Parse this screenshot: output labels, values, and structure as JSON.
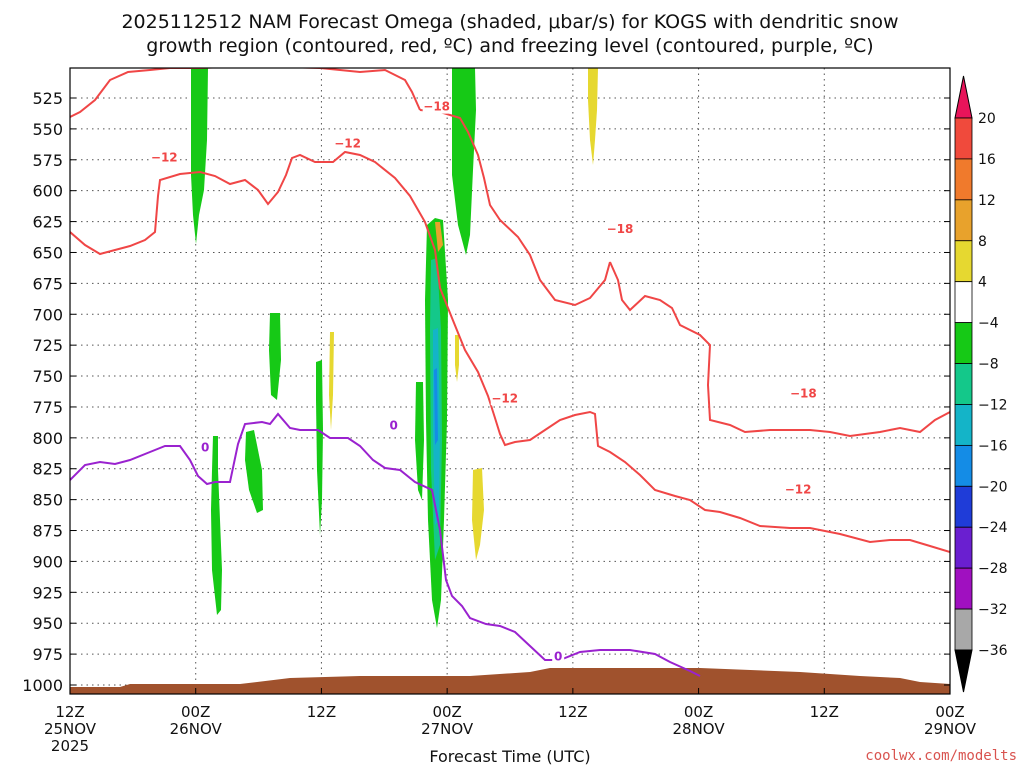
{
  "chart_data": {
    "type": "heatmap",
    "title_line1": "2025112512 NAM Forecast Omega (shaded, μbar/s) for KOGS with dendritic snow",
    "title_line2": "growth region (contoured, red, ºC) and freezing level (contoured, purple, ºC)",
    "xlabel": "Forecast Time (UTC)",
    "credit": "coolwx.com/modelts",
    "y_axis": {
      "scale": "pressure (hPa), inverted",
      "ylim": [
        1000,
        500
      ],
      "ticks": [
        525,
        550,
        575,
        600,
        625,
        650,
        675,
        700,
        725,
        750,
        775,
        800,
        825,
        850,
        875,
        900,
        925,
        950,
        975,
        1000
      ]
    },
    "x_axis": {
      "xlim_hours": [
        0,
        84
      ],
      "ticks": [
        {
          "h": 0,
          "l1": "12Z",
          "l2": "25NOV",
          "l3": "2025"
        },
        {
          "h": 12,
          "l1": "00Z",
          "l2": "26NOV",
          "l3": ""
        },
        {
          "h": 24,
          "l1": "12Z",
          "l2": "",
          "l3": ""
        },
        {
          "h": 36,
          "l1": "00Z",
          "l2": "27NOV",
          "l3": ""
        },
        {
          "h": 48,
          "l1": "12Z",
          "l2": "",
          "l3": ""
        },
        {
          "h": 60,
          "l1": "00Z",
          "l2": "28NOV",
          "l3": ""
        },
        {
          "h": 72,
          "l1": "12Z",
          "l2": "",
          "l3": ""
        },
        {
          "h": 84,
          "l1": "00Z",
          "l2": "29NOV",
          "l3": ""
        }
      ]
    },
    "colorbar": {
      "labels": [
        "20",
        "16",
        "12",
        "8",
        "4",
        "−4",
        "−8",
        "−12",
        "−16",
        "−20",
        "−24",
        "−28",
        "−32",
        "−36"
      ],
      "colors": [
        "#e8145a",
        "#f04a3c",
        "#f07a2c",
        "#e8a22c",
        "#e6d830",
        "#ffffff",
        "#16c916",
        "#14c88a",
        "#14b4c8",
        "#148ce6",
        "#1f3cd8",
        "#6a1fd0",
        "#a010c0",
        "#a8a8a8"
      ]
    },
    "contours": {
      "red_labels": [
        {
          "text": "−18",
          "h": 35.0,
          "p": 532
        },
        {
          "text": "−12",
          "h": 26.5,
          "p": 562
        },
        {
          "text": "−12",
          "h": 9.0,
          "p": 573
        },
        {
          "text": "−18",
          "h": 52.5,
          "p": 631
        },
        {
          "text": "−12",
          "h": 41.5,
          "p": 768
        },
        {
          "text": "−18",
          "h": 70.0,
          "p": 764
        },
        {
          "text": "−12",
          "h": 69.5,
          "p": 842
        }
      ],
      "purple_labels": [
        {
          "text": "0",
          "h": 12.9,
          "p": 808
        },
        {
          "text": "0",
          "h": 30.9,
          "p": 790
        },
        {
          "text": "0",
          "h": 46.6,
          "p": 977
        }
      ]
    }
  }
}
